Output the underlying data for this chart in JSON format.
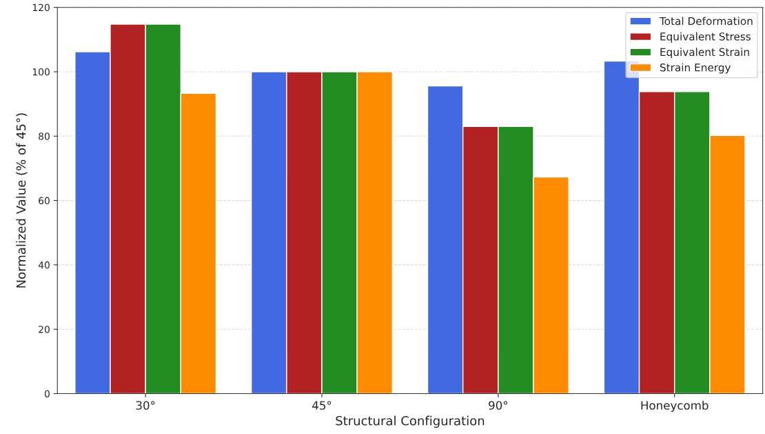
{
  "chart_data": {
    "type": "bar",
    "xlabel": "Structural Configuration",
    "ylabel": "Normalized Value (% of 45°)",
    "categories": [
      "30°",
      "45°",
      "90°",
      "Honeycomb"
    ],
    "series": [
      {
        "name": "Total Deformation",
        "color": "#4169e1",
        "values": [
          106.2,
          100,
          95.6,
          103.3
        ]
      },
      {
        "name": "Equivalent Stress",
        "color": "#b22222",
        "values": [
          114.8,
          100,
          83.0,
          93.8
        ]
      },
      {
        "name": "Equivalent Strain",
        "color": "#228b22",
        "values": [
          114.8,
          100,
          83.0,
          93.8
        ]
      },
      {
        "name": "Strain Energy",
        "color": "#ff8c00",
        "values": [
          93.3,
          100,
          67.3,
          80.2
        ]
      }
    ],
    "ylim": [
      0,
      120
    ],
    "yticks": [
      0,
      20,
      40,
      60,
      80,
      100,
      120
    ],
    "grid": "y",
    "legend": "top right"
  }
}
